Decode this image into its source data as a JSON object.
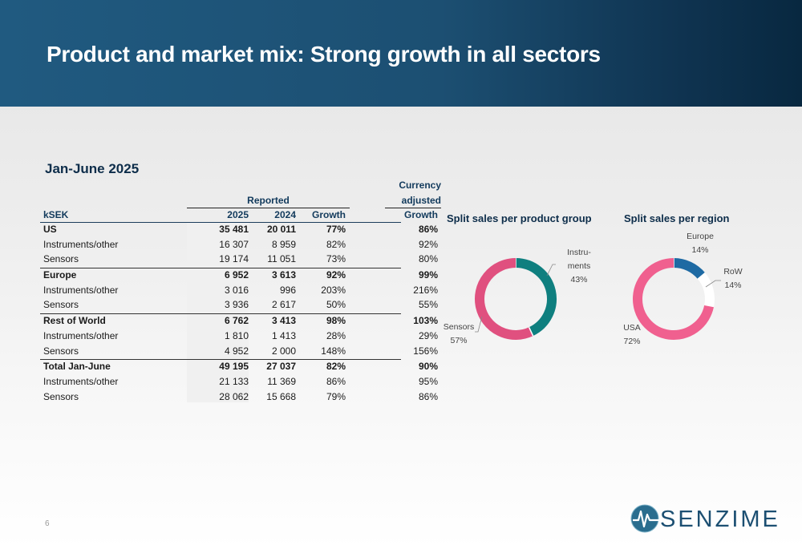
{
  "title": "Product and market mix: Strong growth in all sectors",
  "period": "Jan-June 2025",
  "table": {
    "group_header_reported": "Reported",
    "group_header_currency": "Currency adjusted",
    "columns": [
      "kSEK",
      "2025",
      "2024",
      "Growth",
      "Growth"
    ],
    "rows": [
      {
        "label": "US",
        "v2025": "35 481",
        "v2024": "20 011",
        "growth": "77%",
        "cur_growth": "86%",
        "bold": true,
        "sep": false
      },
      {
        "label": "Instruments/other",
        "v2025": "16 307",
        "v2024": "8 959",
        "growth": "82%",
        "cur_growth": "92%",
        "bold": false,
        "sep": false
      },
      {
        "label": "Sensors",
        "v2025": "19 174",
        "v2024": "11 051",
        "growth": "73%",
        "cur_growth": "80%",
        "bold": false,
        "sep": false
      },
      {
        "label": "Europe",
        "v2025": "6 952",
        "v2024": "3 613",
        "growth": "92%",
        "cur_growth": "99%",
        "bold": true,
        "sep": true
      },
      {
        "label": "Instruments/other",
        "v2025": "3 016",
        "v2024": "996",
        "growth": "203%",
        "cur_growth": "216%",
        "bold": false,
        "sep": false
      },
      {
        "label": "Sensors",
        "v2025": "3 936",
        "v2024": "2 617",
        "growth": "50%",
        "cur_growth": "55%",
        "bold": false,
        "sep": false
      },
      {
        "label": "Rest of World",
        "v2025": "6 762",
        "v2024": "3 413",
        "growth": "98%",
        "cur_growth": "103%",
        "bold": true,
        "sep": true
      },
      {
        "label": "Instruments/other",
        "v2025": "1 810",
        "v2024": "1 413",
        "growth": "28%",
        "cur_growth": "29%",
        "bold": false,
        "sep": false
      },
      {
        "label": "Sensors",
        "v2025": "4 952",
        "v2024": "2 000",
        "growth": "148%",
        "cur_growth": "156%",
        "bold": false,
        "sep": false
      },
      {
        "label": "Total Jan-June",
        "v2025": "49 195",
        "v2024": "27 037",
        "growth": "82%",
        "cur_growth": "90%",
        "bold": true,
        "sep": true
      },
      {
        "label": "Instruments/other",
        "v2025": "21 133",
        "v2024": "11 369",
        "growth": "86%",
        "cur_growth": "95%",
        "bold": false,
        "sep": false
      },
      {
        "label": "Sensors",
        "v2025": "28 062",
        "v2024": "15 668",
        "growth": "79%",
        "cur_growth": "86%",
        "bold": false,
        "sep": false
      }
    ]
  },
  "chart_data": [
    {
      "type": "pie",
      "title": "Split sales per product group",
      "series": [
        {
          "name": "Instru-ments",
          "label_lines": [
            "Instru-",
            "ments"
          ],
          "pct_label": "43%",
          "value": 43,
          "color": "#0f7f7f"
        },
        {
          "name": "Sensors",
          "label_lines": [
            "Sensors"
          ],
          "pct_label": "57%",
          "value": 57,
          "color": "#e0507f"
        }
      ]
    },
    {
      "type": "pie",
      "title": "Split sales per region",
      "series": [
        {
          "name": "Europe",
          "label_lines": [
            "Europe"
          ],
          "pct_label": "14%",
          "value": 14,
          "color": "#1e6aa3"
        },
        {
          "name": "RoW",
          "label_lines": [
            "RoW"
          ],
          "pct_label": "14%",
          "value": 14,
          "color": "#ffffff"
        },
        {
          "name": "USA",
          "label_lines": [
            "USA"
          ],
          "pct_label": "72%",
          "value": 72,
          "color": "#f0608f"
        }
      ]
    }
  ],
  "footer": {
    "page_number": "6",
    "logo_text": "SENZIME"
  }
}
